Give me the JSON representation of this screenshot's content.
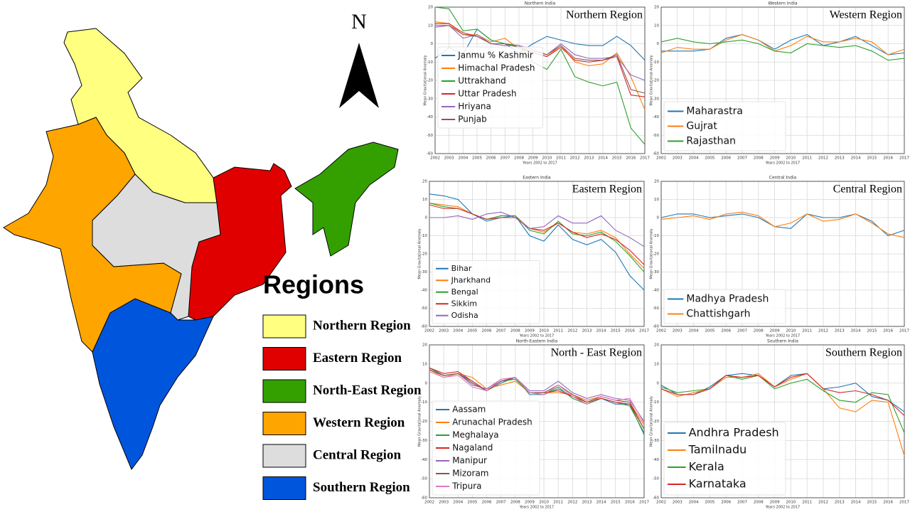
{
  "map": {
    "north": "N",
    "legend_title": "Regions",
    "regions": [
      {
        "label": "Northern Region",
        "color": "#ffff80"
      },
      {
        "label": "Eastern Region",
        "color": "#e00000"
      },
      {
        "label": "North-East Region",
        "color": "#33a000"
      },
      {
        "label": "Western Region",
        "color": "#ffa500"
      },
      {
        "label": "Central Region",
        "color": "#dddddd"
      },
      {
        "label": "Southern Region",
        "color": "#0055dd"
      }
    ]
  },
  "chart_data": [
    {
      "type": "line",
      "title": "Northern India",
      "annotation": "Northern Region",
      "x_label": "Years 2002 to 2017",
      "y_label": "Mean Gravitational Anomaly",
      "x": [
        2002,
        2003,
        2004,
        2005,
        2006,
        2007,
        2008,
        2009,
        2010,
        2011,
        2012,
        2013,
        2014,
        2015,
        2016,
        2017
      ],
      "xlim": [
        2002,
        2017
      ],
      "xticks": [
        2002,
        2003,
        2004,
        2005,
        2006,
        2007,
        2008,
        2009,
        2010,
        2011,
        2012,
        2013,
        2014,
        2015,
        2016,
        2017
      ],
      "ylim": [
        -60,
        20
      ],
      "yticks": [
        -60,
        -50,
        -40,
        -30,
        -20,
        -10,
        0,
        10,
        20
      ],
      "grid": true,
      "legend": "center left",
      "series": [
        {
          "name": "Janmu % Kashmir",
          "color": "#1f77b4",
          "values": [
            -8,
            -2,
            -6,
            8,
            2,
            0,
            -5,
            0,
            4,
            2,
            0,
            -1,
            -1,
            4,
            -1,
            -9
          ]
        },
        {
          "name": "Himachal Pradesh",
          "color": "#ff7f0e",
          "values": [
            12,
            11,
            5,
            5,
            1,
            3,
            -3,
            -5,
            -7,
            -1,
            -10,
            -12,
            -11,
            -5,
            -18,
            -36
          ]
        },
        {
          "name": "Uttrakhand",
          "color": "#2ca02c",
          "values": [
            20,
            19,
            7,
            8,
            2,
            0,
            -1,
            -10,
            -14,
            -3,
            -18,
            -21,
            -23,
            -21,
            -46,
            -55
          ]
        },
        {
          "name": "Uttar Pradesh",
          "color": "#d62728",
          "values": [
            11,
            11,
            6,
            4,
            0,
            0,
            -2,
            -5,
            -7,
            -2,
            -9,
            -10,
            -9,
            -7,
            -28,
            -29
          ]
        },
        {
          "name": "Hriyana",
          "color": "#9467bd",
          "values": [
            9,
            10,
            3,
            5,
            0,
            -1,
            -1,
            -3,
            -6,
            0,
            -6,
            -8,
            -8,
            -7,
            -17,
            -20
          ]
        },
        {
          "name": "Punjab",
          "color": "#8c564b",
          "values": [
            10,
            10,
            5,
            4,
            0,
            0,
            -2,
            -4,
            -6,
            -1,
            -8,
            -9,
            -9,
            -6,
            -25,
            -27
          ]
        }
      ]
    },
    {
      "type": "line",
      "title": "Western India",
      "annotation": "Western Region",
      "x_label": "Years 2002 to 2017",
      "y_label": "Mean Gravitational Anomaly",
      "x": [
        2002,
        2003,
        2004,
        2005,
        2006,
        2007,
        2008,
        2009,
        2010,
        2011,
        2012,
        2013,
        2014,
        2015,
        2016,
        2017
      ],
      "xlim": [
        2002,
        2017
      ],
      "xticks": [
        2002,
        2003,
        2004,
        2005,
        2006,
        2007,
        2008,
        2009,
        2010,
        2011,
        2012,
        2013,
        2014,
        2015,
        2016,
        2017
      ],
      "ylim": [
        -60,
        20
      ],
      "yticks": [
        -60,
        -50,
        -40,
        -30,
        -20,
        -10,
        0,
        10,
        20
      ],
      "grid": true,
      "legend": "lower left",
      "series": [
        {
          "name": "Maharastra",
          "color": "#1f77b4",
          "values": [
            -4,
            -4,
            -4,
            -3,
            3,
            5,
            2,
            -3,
            2,
            5,
            -1,
            1,
            4,
            -1,
            -6,
            -5
          ]
        },
        {
          "name": "Gujrat",
          "color": "#ff7f0e",
          "values": [
            -5,
            -2,
            -3,
            -3,
            2,
            5,
            2,
            -4,
            -1,
            4,
            1,
            1,
            3,
            1,
            -6,
            -3
          ]
        },
        {
          "name": "Rajasthan",
          "color": "#2ca02c",
          "values": [
            1,
            3,
            1,
            0,
            1,
            2,
            0,
            -4,
            -5,
            0,
            -1,
            -2,
            -1,
            -4,
            -9,
            -8
          ]
        }
      ]
    },
    {
      "type": "line",
      "title": "Eastern India",
      "annotation": "Eastern Region",
      "x_label": "Years 2002 to 2017",
      "y_label": "Mean Gravitational Anomaly",
      "x": [
        2002,
        2003,
        2004,
        2005,
        2006,
        2007,
        2008,
        2009,
        2010,
        2011,
        2012,
        2013,
        2014,
        2015,
        2016,
        2017
      ],
      "xlim": [
        2002,
        2017
      ],
      "xticks": [
        2002,
        2003,
        2004,
        2005,
        2006,
        2007,
        2008,
        2009,
        2010,
        2011,
        2012,
        2013,
        2014,
        2015,
        2016,
        2017
      ],
      "ylim": [
        -60,
        20
      ],
      "yticks": [
        -60,
        -50,
        -40,
        -30,
        -20,
        -10,
        0,
        10,
        20
      ],
      "grid": true,
      "legend": "lower left",
      "series": [
        {
          "name": "Bihar",
          "color": "#1f77b4",
          "values": [
            13,
            12,
            10,
            2,
            -2,
            0,
            1,
            -10,
            -13,
            -4,
            -12,
            -15,
            -12,
            -19,
            -32,
            -40
          ]
        },
        {
          "name": "Jharkhand",
          "color": "#ff7f0e",
          "values": [
            8,
            7,
            6,
            2,
            -1,
            1,
            1,
            -6,
            -8,
            -3,
            -8,
            -9,
            -7,
            -11,
            -20,
            -28
          ]
        },
        {
          "name": "Bengal",
          "color": "#2ca02c",
          "values": [
            8,
            6,
            5,
            2,
            -1,
            1,
            1,
            -7,
            -9,
            -2,
            -9,
            -10,
            -8,
            -13,
            -21,
            -30
          ]
        },
        {
          "name": "Sikkim",
          "color": "#d62728",
          "values": [
            7,
            5,
            5,
            2,
            -1,
            0,
            0,
            -6,
            -7,
            -3,
            -8,
            -11,
            -9,
            -12,
            -18,
            -26
          ]
        },
        {
          "name": "Odisha",
          "color": "#9467bd",
          "values": [
            0,
            0,
            1,
            -1,
            2,
            3,
            0,
            -6,
            -5,
            1,
            -3,
            -3,
            1,
            -7,
            -11,
            -16
          ]
        }
      ]
    },
    {
      "type": "line",
      "title": "Central India",
      "annotation": "Central Region",
      "x_label": "Years 2002 to 2017",
      "y_label": "Mean Gravitational Anomaly",
      "x": [
        2002,
        2003,
        2004,
        2005,
        2006,
        2007,
        2008,
        2009,
        2010,
        2011,
        2012,
        2013,
        2014,
        2015,
        2016,
        2017
      ],
      "xlim": [
        2002,
        2017
      ],
      "xticks": [
        2002,
        2003,
        2004,
        2005,
        2006,
        2007,
        2008,
        2009,
        2010,
        2011,
        2012,
        2013,
        2014,
        2015,
        2016,
        2017
      ],
      "ylim": [
        -60,
        20
      ],
      "yticks": [
        -60,
        -50,
        -40,
        -30,
        -20,
        -10,
        0,
        10,
        20
      ],
      "grid": true,
      "legend": "lower left",
      "series": [
        {
          "name": "Madhya Pradesh",
          "color": "#1f77b4",
          "values": [
            0,
            2,
            2,
            0,
            1,
            2,
            0,
            -5,
            -6,
            2,
            0,
            0,
            2,
            -2,
            -10,
            -7
          ]
        },
        {
          "name": "Chattishgarh",
          "color": "#ff7f0e",
          "values": [
            -1,
            0,
            1,
            -1,
            2,
            3,
            1,
            -5,
            -3,
            2,
            -2,
            -1,
            2,
            -3,
            -9,
            -11
          ]
        }
      ]
    },
    {
      "type": "line",
      "title": "North-Eastern India",
      "annotation": "North - East Region",
      "x_label": "Years 2002 to 2017",
      "y_label": "Mean Gravitational Anomaly",
      "x": [
        2002,
        2003,
        2004,
        2005,
        2006,
        2007,
        2008,
        2009,
        2010,
        2011,
        2012,
        2013,
        2014,
        2015,
        2016,
        2017
      ],
      "xlim": [
        2002,
        2017
      ],
      "xticks": [
        2002,
        2003,
        2004,
        2005,
        2006,
        2007,
        2008,
        2009,
        2010,
        2011,
        2012,
        2013,
        2014,
        2015,
        2016,
        2017
      ],
      "ylim": [
        -60,
        20
      ],
      "yticks": [
        -60,
        -50,
        -40,
        -30,
        -20,
        -10,
        0,
        10,
        20
      ],
      "grid": true,
      "legend": "lower left",
      "series": [
        {
          "name": "Aassam",
          "color": "#1f77b4",
          "values": [
            8,
            4,
            5,
            1,
            -4,
            0,
            3,
            -6,
            -6,
            -3,
            -7,
            -11,
            -8,
            -11,
            -11,
            -27
          ]
        },
        {
          "name": "Arunachal Pradesh",
          "color": "#ff7f0e",
          "values": [
            7,
            3,
            5,
            3,
            -3,
            -1,
            1,
            -5,
            -5,
            -5,
            -6,
            -9,
            -7,
            -9,
            -10,
            -22
          ]
        },
        {
          "name": "Meghalaya",
          "color": "#2ca02c",
          "values": [
            8,
            4,
            5,
            0,
            -4,
            1,
            2,
            -5,
            -6,
            -2,
            -8,
            -11,
            -8,
            -10,
            -12,
            -26
          ]
        },
        {
          "name": "Nagaland",
          "color": "#d62728",
          "values": [
            8,
            5,
            6,
            1,
            -4,
            1,
            3,
            -5,
            -5,
            -4,
            -7,
            -10,
            -8,
            -10,
            -11,
            -24
          ]
        },
        {
          "name": "Manipur",
          "color": "#9467bd",
          "values": [
            7,
            4,
            5,
            -1,
            -3,
            2,
            3,
            -4,
            -4,
            1,
            -5,
            -8,
            -6,
            -8,
            -9,
            -20
          ]
        },
        {
          "name": "Mizoram",
          "color": "#8c564b",
          "values": [
            7,
            4,
            5,
            0,
            -4,
            1,
            3,
            -5,
            -5,
            -1,
            -6,
            -10,
            -7,
            -9,
            -10,
            -24
          ]
        },
        {
          "name": "Tripura",
          "color": "#e377c2",
          "values": [
            6,
            3,
            4,
            -2,
            -4,
            2,
            3,
            -5,
            -6,
            -1,
            -7,
            -11,
            -7,
            -9,
            -8,
            -21
          ]
        }
      ]
    },
    {
      "type": "line",
      "title": "Southern India",
      "annotation": "Southern Region",
      "x_label": "Years 2002 to 2017",
      "y_label": "Mean Gravitational Anomaly",
      "x": [
        2002,
        2003,
        2004,
        2005,
        2006,
        2007,
        2008,
        2009,
        2010,
        2011,
        2012,
        2013,
        2014,
        2015,
        2016,
        2017
      ],
      "xlim": [
        2002,
        2017
      ],
      "xticks": [
        2002,
        2003,
        2004,
        2005,
        2006,
        2007,
        2008,
        2009,
        2010,
        2011,
        2012,
        2013,
        2014,
        2015,
        2016,
        2017
      ],
      "ylim": [
        -60,
        20
      ],
      "yticks": [
        -60,
        -50,
        -40,
        -30,
        -20,
        -10,
        0,
        10,
        20
      ],
      "grid": true,
      "legend": "lower left",
      "series": [
        {
          "name": "Andhra Pradesh",
          "color": "#1f77b4",
          "values": [
            -1,
            -6,
            -6,
            -2,
            4,
            5,
            4,
            -2,
            4,
            5,
            -3,
            -2,
            0,
            -7,
            -9,
            -15
          ]
        },
        {
          "name": "Tamilnadu",
          "color": "#ff7f0e",
          "values": [
            -3,
            -7,
            -5,
            -3,
            3,
            3,
            5,
            -2,
            2,
            5,
            -3,
            -13,
            -15,
            -9,
            -10,
            -38
          ]
        },
        {
          "name": "Kerala",
          "color": "#2ca02c",
          "values": [
            -2,
            -5,
            -4,
            -3,
            4,
            2,
            4,
            -3,
            0,
            2,
            -4,
            -9,
            -10,
            -5,
            -6,
            -26
          ]
        },
        {
          "name": "Karnataka",
          "color": "#d62728",
          "values": [
            -3,
            -6,
            -6,
            -3,
            4,
            3,
            4,
            -2,
            3,
            5,
            -3,
            -5,
            -4,
            -6,
            -9,
            -17
          ]
        }
      ]
    }
  ]
}
